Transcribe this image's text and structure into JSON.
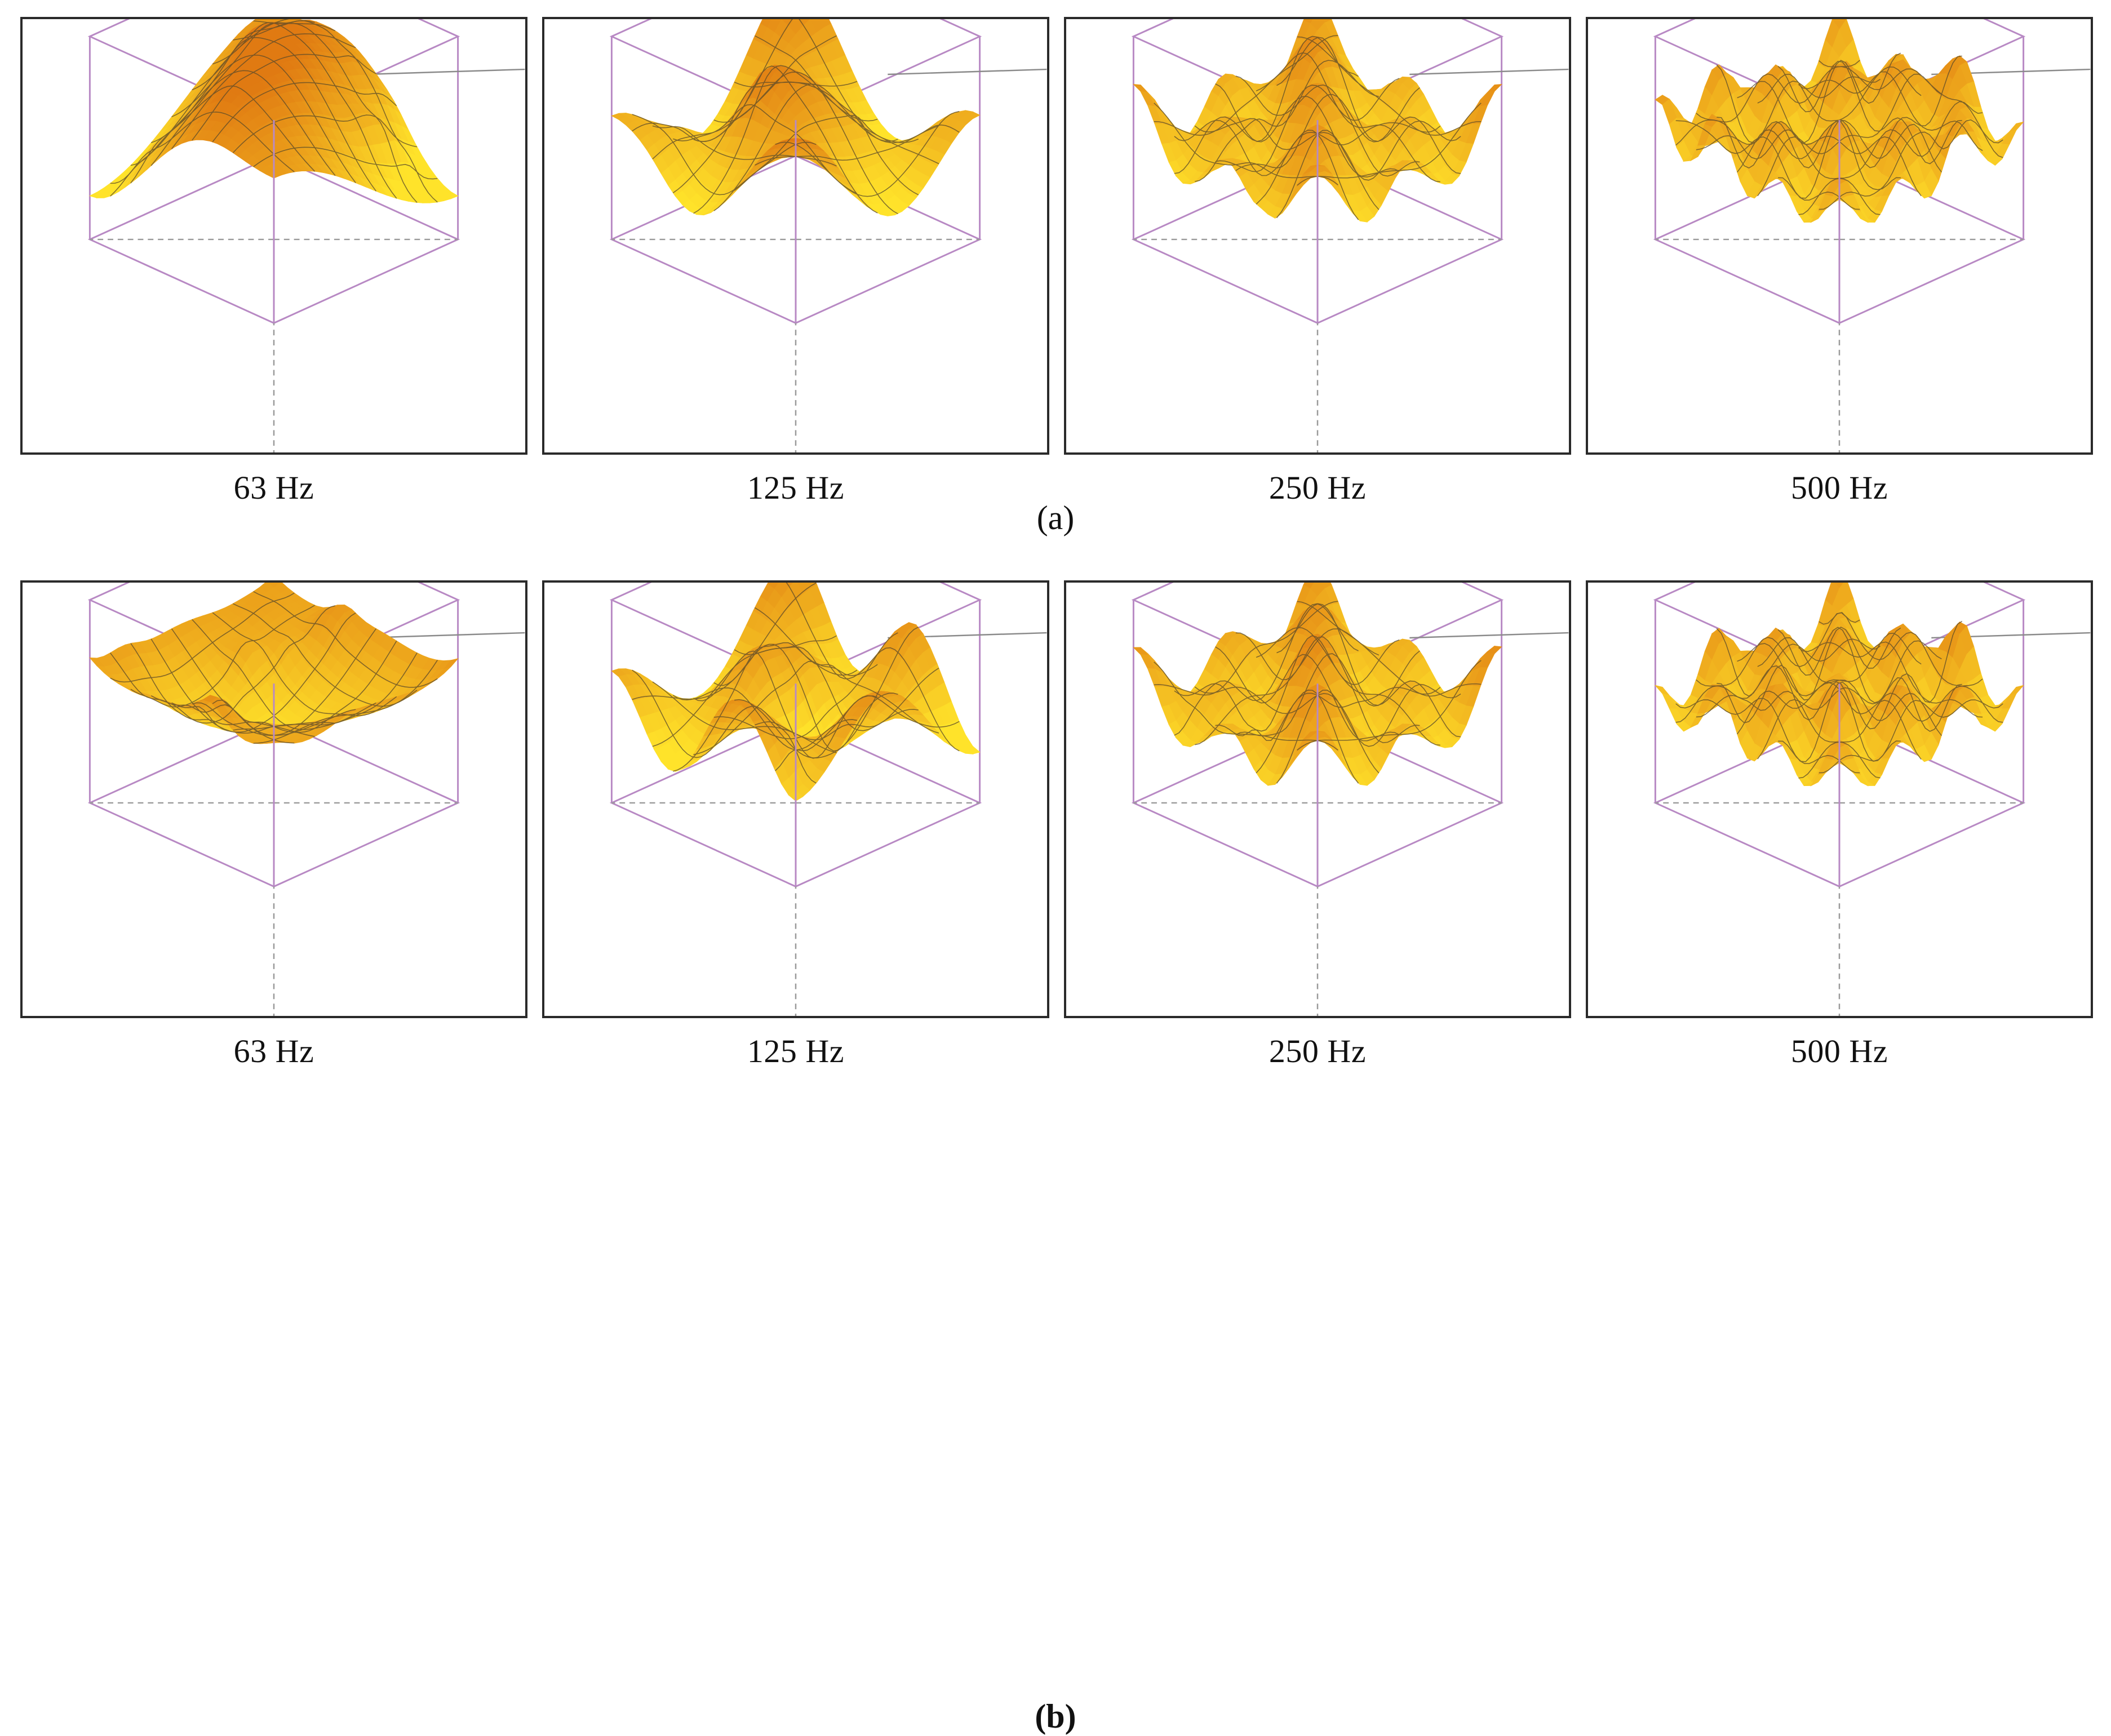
{
  "figure": {
    "rows": [
      {
        "caption": "(a)",
        "panels": [
          {
            "label": "63 Hz",
            "shape": "ridge"
          },
          {
            "label": "125 Hz",
            "shape": "dome"
          },
          {
            "label": "250 Hz",
            "shape": "rough"
          },
          {
            "label": "500 Hz",
            "shape": "fine"
          }
        ]
      },
      {
        "caption": "(b)",
        "panels": [
          {
            "label": "63 Hz",
            "shape": "bowl"
          },
          {
            "label": "125 Hz",
            "shape": "waves"
          },
          {
            "label": "250 Hz",
            "shape": "rough"
          },
          {
            "label": "500 Hz",
            "shape": "fine"
          }
        ]
      }
    ]
  },
  "colors": {
    "surface_dark": "#e07a12",
    "surface_mid": "#f0a820",
    "surface_light": "#ffe32a",
    "contour": "#5a4a2a",
    "box_edge": "#b889c4",
    "vertical_axis": "#7cc47c",
    "panel_border": "#2a2a2a"
  }
}
